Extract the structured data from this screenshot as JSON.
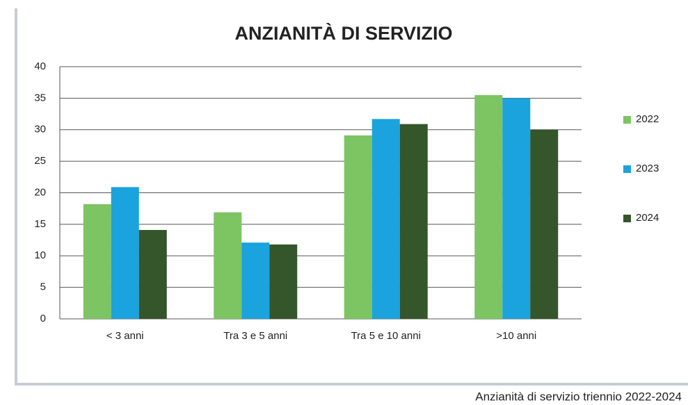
{
  "chart_data": {
    "type": "bar",
    "title": "ANZIANITÀ DI SERVIZIO",
    "caption": "Anzianità di servizio triennio 2022-2024",
    "categories": [
      "< 3 anni",
      "Tra 3 e 5 anni",
      "Tra 5 e 10 anni",
      ">10 anni"
    ],
    "series": [
      {
        "name": "2022",
        "color": "#7dc462",
        "values": [
          18.2,
          16.9,
          29.1,
          35.5
        ]
      },
      {
        "name": "2023",
        "color": "#1aa3dc",
        "values": [
          20.9,
          12.1,
          31.7,
          35.0
        ]
      },
      {
        "name": "2024",
        "color": "#35552a",
        "values": [
          14.1,
          11.8,
          30.9,
          30.0
        ]
      }
    ],
    "ylim": [
      0,
      40
    ],
    "yticks": [
      0,
      5,
      10,
      15,
      20,
      25,
      30,
      35,
      40
    ],
    "grid": true,
    "legend": "right"
  }
}
